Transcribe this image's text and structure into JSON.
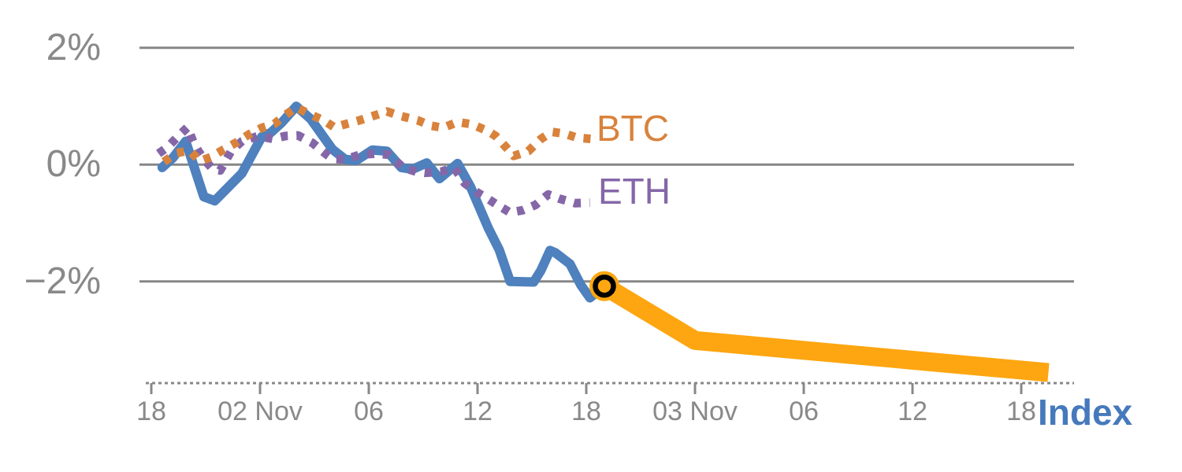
{
  "chart_data": {
    "type": "line",
    "title": "",
    "description": "Crypto index percent-change chart: BTC and ETH dotted series, solid blue Index line ending at a highlighted marker, and a thick orange projection line continuing to the right",
    "x_axis": {
      "tick_labels": [
        "18",
        "02 Nov",
        "06",
        "12",
        "18",
        "03 Nov",
        "06",
        "12",
        "18"
      ],
      "tick_hours": [
        0,
        6,
        12,
        18,
        24,
        30,
        36,
        42,
        48
      ],
      "hours_origin": "18:00 before 02 Nov",
      "range_hours": [
        -0.3,
        50.9
      ],
      "grid": false
    },
    "y_axis": {
      "tick_labels": [
        "2%",
        "0%",
        "−2%"
      ],
      "tick_values": [
        2,
        0,
        -2
      ],
      "unit": "%",
      "range": [
        -3.75,
        2.05
      ],
      "grid": true
    },
    "legend_position": "inline-end-of-line",
    "labels": {
      "btc": "BTC",
      "eth": "ETH",
      "index": "Index"
    },
    "colors": {
      "index_line": "#4E81BD",
      "btc_line": "#D9823C",
      "eth_line": "#8567A8",
      "forecast_line": "#FDA611",
      "marker_ring": "#000000",
      "gridline": "#878787",
      "axis": "#888888",
      "tick_text": "#898989",
      "index_label_text": "#4679BC",
      "background": "#ffffff"
    },
    "series": [
      {
        "name": "Index",
        "style": "solid",
        "color": "#4E81BD",
        "points": [
          [
            0.6,
            -0.05
          ],
          [
            1.2,
            0.12
          ],
          [
            1.9,
            0.4
          ],
          [
            2.9,
            -0.55
          ],
          [
            3.5,
            -0.62
          ],
          [
            5,
            -0.15
          ],
          [
            6.1,
            0.48
          ],
          [
            6.6,
            0.55
          ],
          [
            7.2,
            0.72
          ],
          [
            8,
            1.0
          ],
          [
            8.8,
            0.78
          ],
          [
            10,
            0.26
          ],
          [
            10.7,
            0.09
          ],
          [
            11.3,
            0.07
          ],
          [
            12.2,
            0.25
          ],
          [
            13,
            0.23
          ],
          [
            13.8,
            -0.05
          ],
          [
            14.4,
            -0.08
          ],
          [
            15.2,
            0.03
          ],
          [
            15.9,
            -0.24
          ],
          [
            16.9,
            0.02
          ],
          [
            17.6,
            -0.37
          ],
          [
            18.6,
            -1.09
          ],
          [
            19.2,
            -1.46
          ],
          [
            19.8,
            -2.0
          ],
          [
            21.1,
            -2.01
          ],
          [
            21.5,
            -1.81
          ],
          [
            22,
            -1.47
          ],
          [
            22.3,
            -1.51
          ],
          [
            23.1,
            -1.7
          ],
          [
            23.7,
            -2.06
          ],
          [
            24.2,
            -2.28
          ],
          [
            25,
            -2.08
          ]
        ]
      },
      {
        "name": "ETH",
        "style": "dotted",
        "color": "#8567A8",
        "points": [
          [
            0.4,
            0.19
          ],
          [
            0.9,
            0.3
          ],
          [
            1.4,
            0.46
          ],
          [
            2,
            0.64
          ],
          [
            2.3,
            0.4
          ],
          [
            2.6,
            0.23
          ],
          [
            3,
            0.06
          ],
          [
            3.4,
            -0.08
          ],
          [
            3.8,
            -0.1
          ],
          [
            4.4,
            0.23
          ],
          [
            5,
            0.4
          ],
          [
            5.9,
            0.49
          ],
          [
            6.7,
            0.44
          ],
          [
            7.4,
            0.49
          ],
          [
            8.1,
            0.5
          ],
          [
            8.9,
            0.37
          ],
          [
            9.6,
            0.19
          ],
          [
            10,
            0.1
          ],
          [
            10.7,
            0.09
          ],
          [
            11.5,
            0.17
          ],
          [
            12.4,
            0.19
          ],
          [
            13.1,
            0.17
          ],
          [
            13.9,
            -0.05
          ],
          [
            14.6,
            -0.12
          ],
          [
            15.1,
            -0.14
          ],
          [
            16,
            -0.12
          ],
          [
            16.7,
            -0.05
          ],
          [
            17.3,
            -0.32
          ],
          [
            18,
            -0.48
          ],
          [
            18.6,
            -0.59
          ],
          [
            19.2,
            -0.71
          ],
          [
            19.8,
            -0.82
          ],
          [
            20.5,
            -0.78
          ],
          [
            21.2,
            -0.69
          ],
          [
            21.9,
            -0.51
          ],
          [
            22.5,
            -0.58
          ],
          [
            23.4,
            -0.66
          ],
          [
            24.2,
            -0.65
          ]
        ]
      },
      {
        "name": "BTC",
        "style": "dotted",
        "color": "#D9823C",
        "points": [
          [
            0.7,
            0.05
          ],
          [
            1.4,
            0.2
          ],
          [
            2.1,
            0.24
          ],
          [
            2.7,
            0.06
          ],
          [
            3.3,
            0.13
          ],
          [
            4,
            0.26
          ],
          [
            4.7,
            0.38
          ],
          [
            5.4,
            0.52
          ],
          [
            6.1,
            0.63
          ],
          [
            6.8,
            0.7
          ],
          [
            7.4,
            0.85
          ],
          [
            8,
            0.98
          ],
          [
            8.7,
            0.87
          ],
          [
            9.5,
            0.76
          ],
          [
            10.1,
            0.64
          ],
          [
            10.8,
            0.7
          ],
          [
            11.5,
            0.76
          ],
          [
            12.2,
            0.83
          ],
          [
            13,
            0.91
          ],
          [
            13.8,
            0.83
          ],
          [
            14.7,
            0.76
          ],
          [
            15.4,
            0.67
          ],
          [
            16.1,
            0.63
          ],
          [
            16.9,
            0.73
          ],
          [
            17.7,
            0.69
          ],
          [
            18.6,
            0.57
          ],
          [
            19,
            0.49
          ],
          [
            19.6,
            0.29
          ],
          [
            20,
            0.15
          ],
          [
            20.8,
            0.23
          ],
          [
            21.5,
            0.44
          ],
          [
            22.1,
            0.56
          ],
          [
            22.8,
            0.53
          ],
          [
            23.5,
            0.46
          ],
          [
            24.3,
            0.44
          ]
        ]
      },
      {
        "name": "Index forecast",
        "style": "solid-thick",
        "color": "#FDA611",
        "points": [
          [
            25,
            -2.08
          ],
          [
            30,
            -3.01
          ],
          [
            49.5,
            -3.56
          ]
        ]
      }
    ],
    "highlight_marker": {
      "hour": 25,
      "value": -2.08,
      "fill": "#FDA611",
      "ring": "#000000"
    }
  }
}
